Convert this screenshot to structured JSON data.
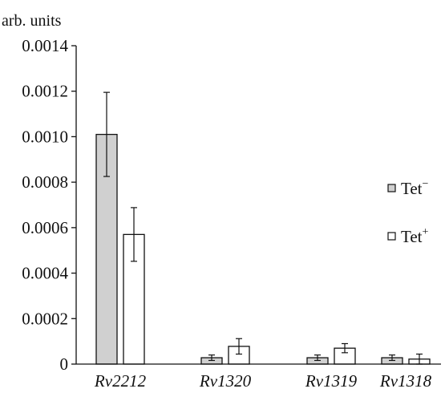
{
  "chart_data": {
    "type": "bar",
    "ylabel": "arb. units",
    "ylim": [
      0,
      0.0014
    ],
    "yticks": [
      "0",
      "0.0002",
      "0.0004",
      "0.0006",
      "0.0008",
      "0.0010",
      "0.0012",
      "0.0014"
    ],
    "categories": [
      "Rv2212",
      "Rv1320",
      "Rv1319",
      "Rv1318"
    ],
    "series": [
      {
        "name": "Tet",
        "superscript": "−",
        "color": "#d0d0d0",
        "values": [
          0.00101,
          2.8e-05,
          2.8e-05,
          2.8e-05
        ],
        "errors": [
          0.000185,
          1.2e-05,
          1.2e-05,
          1.2e-05
        ]
      },
      {
        "name": "Tet",
        "superscript": "+",
        "color": "#ffffff",
        "values": [
          0.00057,
          7.8e-05,
          7e-05,
          2.2e-05
        ],
        "errors": [
          0.000118,
          3.4e-05,
          2e-05,
          2.2e-05
        ]
      }
    ],
    "legend_position": "right",
    "grid": false
  }
}
